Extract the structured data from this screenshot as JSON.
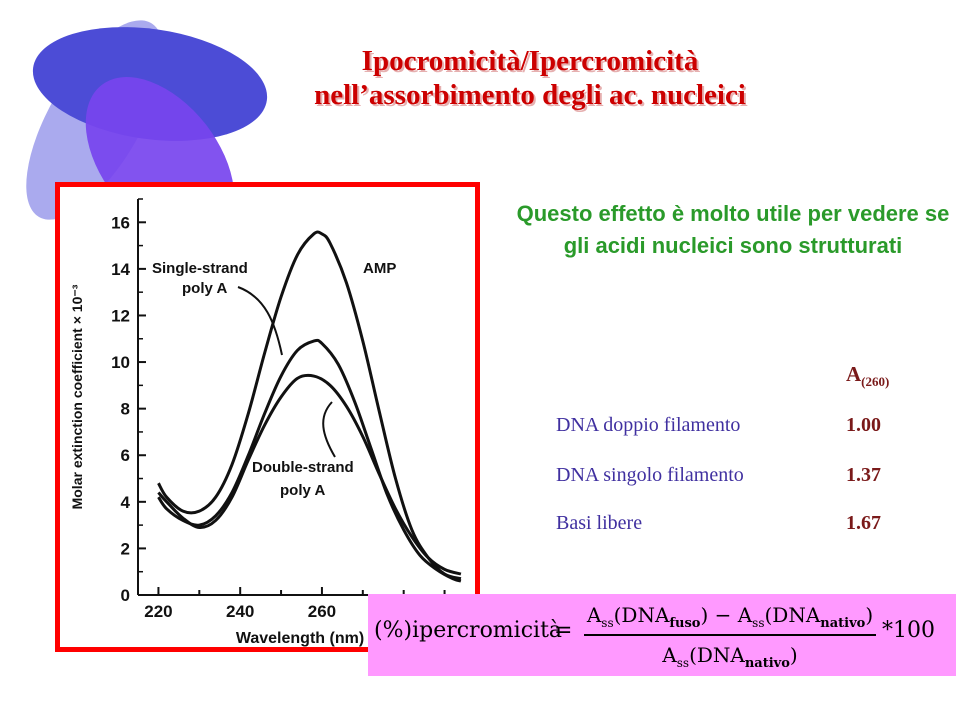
{
  "title": {
    "line1": "Ipocromicità/Ipercromicità",
    "line2": "nell’assorbimento  degli ac. nucleici"
  },
  "intro_text": "Questo effetto è molto utile per vedere se gli acidi nucleici sono strutturati",
  "colors": {
    "title": "#cc0000",
    "frame": "#ff0000",
    "intro": "#2a9a2a",
    "table_labels": "#4030a0",
    "table_values": "#7a1a1a",
    "formula_bg": "#ff99ff",
    "ellipse_dark": "#4c4cd6",
    "ellipse_light": "#aaaaee",
    "ellipse_violet": "#7744ee"
  },
  "absorbance_table": {
    "header": "A",
    "header_sub": "(260)",
    "rows": [
      {
        "label": "DNA doppio filamento",
        "value": "1.00"
      },
      {
        "label": "DNA singolo filamento",
        "value": "1.37"
      },
      {
        "label": "Basi libere",
        "value": "1.67"
      }
    ]
  },
  "formula": {
    "lhs": "(%)ipercromicità",
    "equals": "=",
    "numerator": {
      "t1": "A",
      "t1_sub": "ss",
      "t2": "(DNA",
      "t2_sub": "fuso",
      "t3": ") − A",
      "t3_sub": "ss",
      "t4": "(DNA",
      "t4_sub": "nativo",
      "t5": ")"
    },
    "denominator": {
      "t1": "A",
      "t1_sub": "ss",
      "t2": "(DNA",
      "t2_sub": "nativo",
      "t3": ")"
    },
    "tail": "*100"
  },
  "chart_data": {
    "type": "line",
    "xlabel": "Wavelength (nm)",
    "ylabel": "Molar extinction coefficient × 10⁻³",
    "xlim": [
      215,
      295
    ],
    "ylim": [
      0,
      17
    ],
    "xticks": [
      220,
      240,
      260
    ],
    "yticks": [
      0,
      2,
      4,
      6,
      8,
      10,
      12,
      14,
      16
    ],
    "series": [
      {
        "name": "AMP",
        "x": [
          220,
          222,
          226,
          230,
          234,
          238,
          242,
          246,
          250,
          254,
          258,
          260,
          262,
          266,
          270,
          274,
          278,
          282,
          286,
          290,
          294
        ],
        "y": [
          4.8,
          4.2,
          3.6,
          3.6,
          4.2,
          5.6,
          7.8,
          10.4,
          12.8,
          14.6,
          15.5,
          15.5,
          15.1,
          13.4,
          10.9,
          7.9,
          5.0,
          2.8,
          1.6,
          0.9,
          0.7
        ]
      },
      {
        "name": "Single-strand poly A",
        "x": [
          220,
          222,
          226,
          230,
          234,
          238,
          242,
          246,
          250,
          254,
          258,
          260,
          264,
          268,
          272,
          276,
          280,
          284,
          288,
          292,
          294
        ],
        "y": [
          4.2,
          3.7,
          3.2,
          3.0,
          3.4,
          4.4,
          6.0,
          7.8,
          9.4,
          10.5,
          10.9,
          10.8,
          9.9,
          8.3,
          6.3,
          4.3,
          2.8,
          1.7,
          1.1,
          0.7,
          0.6
        ]
      },
      {
        "name": "Double-strand poly A",
        "x": [
          220,
          222,
          226,
          230,
          234,
          238,
          242,
          246,
          250,
          254,
          258,
          262,
          266,
          270,
          274,
          278,
          282,
          286,
          290,
          294
        ],
        "y": [
          4.4,
          4.0,
          3.3,
          2.9,
          3.2,
          4.2,
          5.8,
          7.3,
          8.5,
          9.3,
          9.4,
          9.0,
          8.1,
          6.8,
          5.2,
          3.7,
          2.5,
          1.6,
          1.1,
          0.9
        ]
      }
    ],
    "annotations": [
      {
        "text": "Single-strand",
        "line2": "poly A"
      },
      {
        "text": "AMP"
      },
      {
        "text": "Double-strand",
        "line2": "poly A"
      }
    ]
  }
}
